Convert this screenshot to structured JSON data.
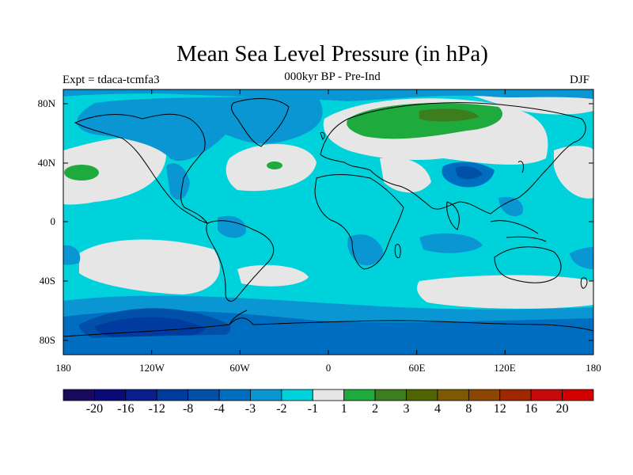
{
  "title": "Mean Sea Level Pressure (in hPa)",
  "subtitle": "000kyr BP - Pre-Ind",
  "left_label": "Expt = tdaca-tcmfa3",
  "right_label": "DJF",
  "lat_ticks": [
    "80N",
    "40N",
    "0",
    "40S",
    "80S"
  ],
  "lon_ticks": [
    "180",
    "120W",
    "60W",
    "0",
    "60E",
    "120E",
    "180"
  ],
  "colorbar": {
    "colors": [
      "#1a0a5e",
      "#0a0a78",
      "#0a1e8c",
      "#003ca0",
      "#0050a8",
      "#006ec0",
      "#0a96d2",
      "#00d2dc",
      "#e6e6e6",
      "#1eaa3c",
      "#3c7d1e",
      "#506400",
      "#7d5a00",
      "#8c4600",
      "#a02800",
      "#c80a0a",
      "#d20000"
    ],
    "labels": [
      "-20",
      "-16",
      "-12",
      "-8",
      "-4",
      "-3",
      "-2",
      "-1",
      "1",
      "2",
      "3",
      "4",
      "8",
      "12",
      "16",
      "20"
    ]
  }
}
